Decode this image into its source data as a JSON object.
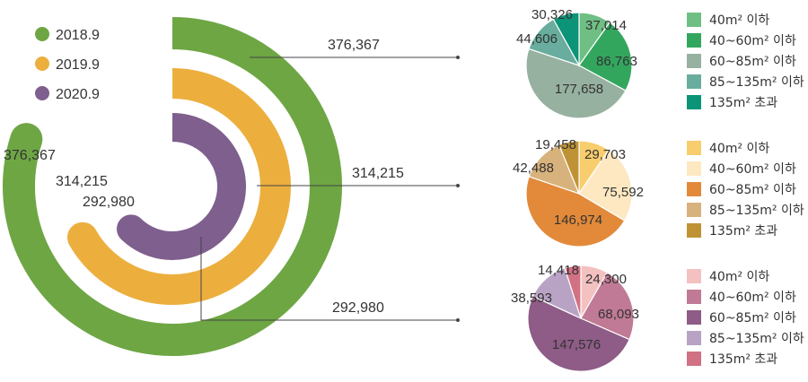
{
  "chart_data": [
    {
      "type": "radial-bar",
      "title": "",
      "series": [
        {
          "name": "2018.9",
          "value": 376367,
          "color": "#6ea644",
          "value_label": "376,367"
        },
        {
          "name": "2019.9",
          "value": 314215,
          "color": "#ecaf3e",
          "value_label": "314,215"
        },
        {
          "name": "2020.9",
          "value": 292980,
          "color": "#7e5f8e",
          "value_label": "292,980"
        }
      ],
      "legend": [
        "2018.9",
        "2019.9",
        "2020.9"
      ],
      "legend_position": "top-left"
    },
    {
      "type": "pie",
      "name": "2018.9",
      "categories": [
        "40m² 이하",
        "40~60m² 이하",
        "60~85m² 이하",
        "85~135m² 이하",
        "135m² 초과"
      ],
      "values": [
        37014,
        86763,
        177658,
        44606,
        30326
      ],
      "value_labels": [
        "37,014",
        "86,763",
        "177,658",
        "44,606",
        "30,326"
      ],
      "colors": [
        "#6fbf85",
        "#33a65e",
        "#97b1a0",
        "#68ad9e",
        "#0b9478"
      ]
    },
    {
      "type": "pie",
      "name": "2019.9",
      "categories": [
        "40m² 이하",
        "40~60m² 이하",
        "60~85m² 이하",
        "85~135m² 이하",
        "135m² 초과"
      ],
      "values": [
        29703,
        75592,
        146974,
        42488,
        19458
      ],
      "value_labels": [
        "29,703",
        "75,592",
        "146,974",
        "42,488",
        "19,458"
      ],
      "colors": [
        "#f8cd6d",
        "#fde8c1",
        "#e28a3a",
        "#d8b27c",
        "#bf9335"
      ]
    },
    {
      "type": "pie",
      "name": "2020.9",
      "categories": [
        "40m² 이하",
        "40~60m² 이하",
        "60~85m² 이하",
        "85~135m² 이하",
        "135m² 초과"
      ],
      "values": [
        24300,
        68093,
        147576,
        38593,
        14418
      ],
      "value_labels": [
        "24,300",
        "68,093",
        "147,576",
        "38,593",
        "14,418"
      ],
      "colors": [
        "#f4c1c1",
        "#c07a95",
        "#8e5c86",
        "#b9a3c5",
        "#d07284"
      ]
    }
  ]
}
